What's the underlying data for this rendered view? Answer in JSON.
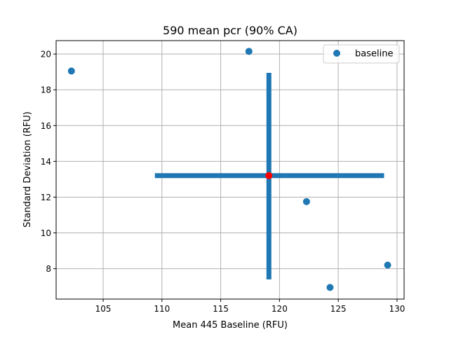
{
  "chart_data": {
    "type": "scatter",
    "title": "590 mean pcr (90% CA)",
    "xlabel": "Mean 445 Baseline (RFU)",
    "ylabel": "Standard Deviation (RFU)",
    "xlim": [
      101.0,
      130.6
    ],
    "ylim": [
      6.3,
      20.75
    ],
    "xticks": [
      105,
      110,
      115,
      120,
      125,
      130
    ],
    "yticks": [
      8,
      10,
      12,
      14,
      16,
      18,
      20
    ],
    "grid": true,
    "legend_position": "upper right",
    "series": [
      {
        "name": "baseline",
        "color": "#1f77b4",
        "points": [
          {
            "x": 102.3,
            "y": 19.05
          },
          {
            "x": 117.4,
            "y": 20.15
          },
          {
            "x": 122.3,
            "y": 11.75
          },
          {
            "x": 124.3,
            "y": 6.95
          },
          {
            "x": 129.2,
            "y": 8.2
          }
        ]
      }
    ],
    "mean_point": {
      "x": 119.1,
      "y": 13.2,
      "color": "#ff0000"
    },
    "confidence_interval": {
      "color": "#1f77b4",
      "x_range": [
        109.4,
        128.9
      ],
      "y_range": [
        7.4,
        18.95
      ]
    }
  }
}
